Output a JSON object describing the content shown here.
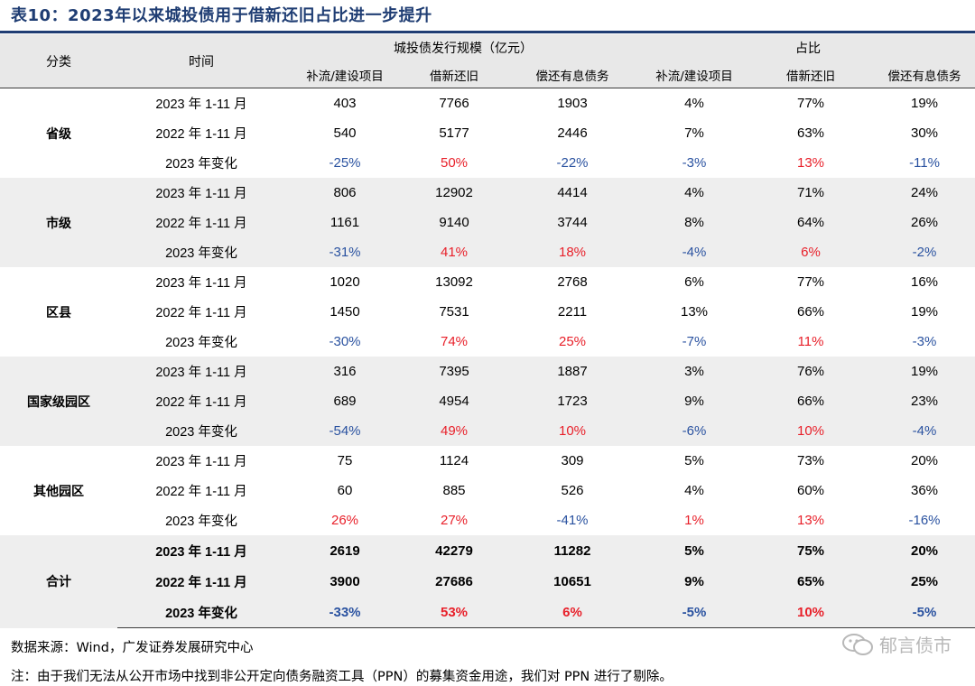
{
  "title": "表10：2023年以来城投债用于借新还旧占比进一步提升",
  "header": {
    "category": "分类",
    "time": "时间",
    "group_scale": "城投债发行规模（亿元）",
    "group_share": "占比",
    "sub_cols": [
      "补流/建设项目",
      "借新还旧",
      "偿还有息债务",
      "补流/建设项目",
      "借新还旧",
      "偿还有息债务"
    ]
  },
  "groups": [
    {
      "category": "省级",
      "rows": [
        {
          "time": "2023 年  1-11 月",
          "values": [
            "403",
            "7766",
            "1903",
            "4%",
            "77%",
            "19%"
          ]
        },
        {
          "time": "2022 年  1-11 月",
          "values": [
            "540",
            "5177",
            "2446",
            "7%",
            "63%",
            "30%"
          ]
        },
        {
          "time": "2023 年变化",
          "values": [
            "-25%",
            "50%",
            "-22%",
            "-3%",
            "13%",
            "-11%"
          ]
        }
      ]
    },
    {
      "category": "市级",
      "rows": [
        {
          "time": "2023 年  1-11 月",
          "values": [
            "806",
            "12902",
            "4414",
            "4%",
            "71%",
            "24%"
          ]
        },
        {
          "time": "2022 年  1-11 月",
          "values": [
            "1161",
            "9140",
            "3744",
            "8%",
            "64%",
            "26%"
          ]
        },
        {
          "time": "2023 年变化",
          "values": [
            "-31%",
            "41%",
            "18%",
            "-4%",
            "6%",
            "-2%"
          ]
        }
      ]
    },
    {
      "category": "区县",
      "rows": [
        {
          "time": "2023 年  1-11 月",
          "values": [
            "1020",
            "13092",
            "2768",
            "6%",
            "77%",
            "16%"
          ]
        },
        {
          "time": "2022 年  1-11 月",
          "values": [
            "1450",
            "7531",
            "2211",
            "13%",
            "66%",
            "19%"
          ]
        },
        {
          "time": "2023 年变化",
          "values": [
            "-30%",
            "74%",
            "25%",
            "-7%",
            "11%",
            "-3%"
          ]
        }
      ]
    },
    {
      "category": "国家级园区",
      "rows": [
        {
          "time": "2023 年  1-11 月",
          "values": [
            "316",
            "7395",
            "1887",
            "3%",
            "76%",
            "19%"
          ]
        },
        {
          "time": "2022 年  1-11 月",
          "values": [
            "689",
            "4954",
            "1723",
            "9%",
            "66%",
            "23%"
          ]
        },
        {
          "time": "2023 年变化",
          "values": [
            "-54%",
            "49%",
            "10%",
            "-6%",
            "10%",
            "-4%"
          ]
        }
      ]
    },
    {
      "category": "其他园区",
      "rows": [
        {
          "time": "2023 年  1-11 月",
          "values": [
            "75",
            "1124",
            "309",
            "5%",
            "73%",
            "20%"
          ]
        },
        {
          "time": "2022 年  1-11 月",
          "values": [
            "60",
            "885",
            "526",
            "4%",
            "60%",
            "36%"
          ]
        },
        {
          "time": "2023 年变化",
          "values": [
            "26%",
            "27%",
            "-41%",
            "1%",
            "13%",
            "-16%"
          ]
        }
      ]
    },
    {
      "category": "合计",
      "rows": [
        {
          "time": "2023 年  1-11 月",
          "values": [
            "2619",
            "42279",
            "11282",
            "5%",
            "75%",
            "20%"
          ]
        },
        {
          "time": "2022 年  1-11 月",
          "values": [
            "3900",
            "27686",
            "10651",
            "9%",
            "65%",
            "25%"
          ]
        },
        {
          "time": "2023 年变化",
          "values": [
            "-33%",
            "53%",
            "6%",
            "-5%",
            "10%",
            "-5%"
          ]
        }
      ]
    }
  ],
  "colors": {
    "negative": "#2a52a0",
    "positive": "#e8202a",
    "title": "#1f3d73"
  },
  "source": "数据来源：Wind，广发证券发展研究中心",
  "note": "注：由于我们无法从公开市场中找到非公开定向债务融资工具（PPN）的募集资金用途，我们对 PPN 进行了剔除。",
  "watermark": "郁言债市"
}
